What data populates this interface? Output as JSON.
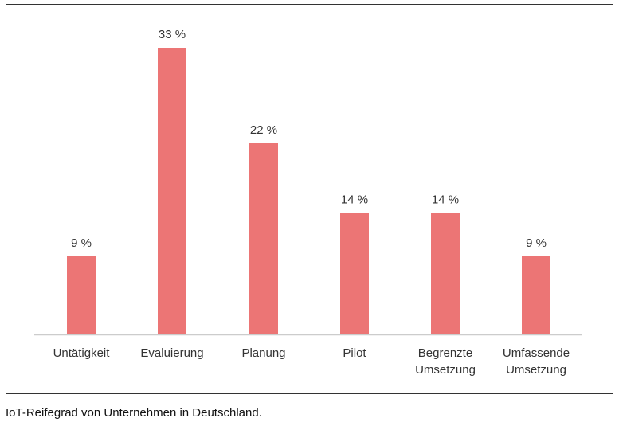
{
  "chart_data": {
    "type": "bar",
    "categories": [
      [
        "Untätigkeit"
      ],
      [
        "Evaluierung"
      ],
      [
        "Planung"
      ],
      [
        "Pilot"
      ],
      [
        "Begrenzte",
        "Umsetzung"
      ],
      [
        "Umfassende",
        "Umsetzung"
      ]
    ],
    "values": [
      9,
      33,
      22,
      14,
      14,
      9
    ],
    "value_labels": [
      "9 %",
      "33 %",
      "22 %",
      "14 %",
      "14 %",
      "9 %"
    ],
    "ylim": [
      0,
      33
    ],
    "grid": false,
    "bar_color": "#ec7575",
    "axis_color": "#cccccc"
  },
  "caption": "IoT-Reifegrad von Unternehmen in Deutschland."
}
